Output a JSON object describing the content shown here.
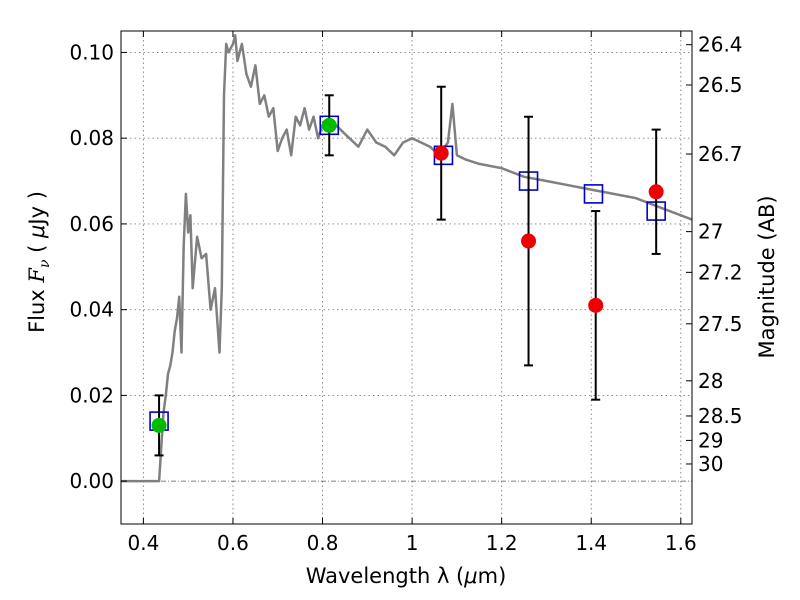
{
  "chart_data": {
    "type": "scatter",
    "xlabel": {
      "prefix": "Wavelength  λ (",
      "mu": "μ",
      "suffix": "m)"
    },
    "ylabel": {
      "prefix": "Flux  ",
      "F": "F",
      "nu": "ν",
      "open": " ( ",
      "mu": "μ",
      "suffix": "Jy )"
    },
    "y2label": "Magnitude (AB)",
    "xlim": [
      0.35,
      1.625
    ],
    "ylim": [
      -0.01,
      0.105
    ],
    "grid": true,
    "xticks": [
      {
        "value": 0.4,
        "label": "0.4"
      },
      {
        "value": 0.6,
        "label": "0.6"
      },
      {
        "value": 0.8,
        "label": "0.8"
      },
      {
        "value": 1.0,
        "label": "1"
      },
      {
        "value": 1.2,
        "label": "1.2"
      },
      {
        "value": 1.4,
        "label": "1.4"
      },
      {
        "value": 1.6,
        "label": "1.6"
      }
    ],
    "yticks": [
      {
        "value": 0.0,
        "label": "0.00"
      },
      {
        "value": 0.02,
        "label": "0.02"
      },
      {
        "value": 0.04,
        "label": "0.04"
      },
      {
        "value": 0.06,
        "label": "0.06"
      },
      {
        "value": 0.08,
        "label": "0.08"
      },
      {
        "value": 0.1,
        "label": "0.10"
      }
    ],
    "mag_ticks": [
      {
        "value": 0.1018,
        "label": "26.4"
      },
      {
        "value": 0.0924,
        "label": "26.5"
      },
      {
        "value": 0.0763,
        "label": "26.7"
      },
      {
        "value": 0.0582,
        "label": "27"
      },
      {
        "value": 0.0487,
        "label": "27.2"
      },
      {
        "value": 0.0367,
        "label": "27.5"
      },
      {
        "value": 0.0234,
        "label": "28"
      },
      {
        "value": 0.0152,
        "label": "28.5"
      },
      {
        "value": 0.0095,
        "label": "29"
      },
      {
        "value": 0.004,
        "label": "30"
      }
    ],
    "series": [
      {
        "kind": "model_spectrum",
        "color": "#808080",
        "x": [
          0.35,
          0.42,
          0.435,
          0.44,
          0.445,
          0.45,
          0.455,
          0.46,
          0.465,
          0.47,
          0.475,
          0.48,
          0.485,
          0.49,
          0.495,
          0.5,
          0.505,
          0.51,
          0.52,
          0.53,
          0.54,
          0.55,
          0.56,
          0.57,
          0.575,
          0.58,
          0.585,
          0.59,
          0.6,
          0.605,
          0.61,
          0.62,
          0.63,
          0.64,
          0.65,
          0.66,
          0.67,
          0.68,
          0.69,
          0.7,
          0.71,
          0.72,
          0.73,
          0.74,
          0.75,
          0.76,
          0.77,
          0.78,
          0.79,
          0.8,
          0.82,
          0.84,
          0.86,
          0.88,
          0.9,
          0.92,
          0.94,
          0.96,
          0.98,
          1.0,
          1.02,
          1.04,
          1.06,
          1.08,
          1.09,
          1.1,
          1.12,
          1.15,
          1.2,
          1.25,
          1.3,
          1.35,
          1.4,
          1.45,
          1.5,
          1.55,
          1.6,
          1.625
        ],
        "y": [
          0.0,
          0.0,
          0.0,
          0.008,
          0.016,
          0.02,
          0.025,
          0.027,
          0.03,
          0.035,
          0.038,
          0.043,
          0.03,
          0.055,
          0.067,
          0.058,
          0.062,
          0.045,
          0.057,
          0.052,
          0.053,
          0.04,
          0.045,
          0.03,
          0.045,
          0.09,
          0.102,
          0.1,
          0.102,
          0.104,
          0.098,
          0.102,
          0.095,
          0.092,
          0.097,
          0.088,
          0.09,
          0.085,
          0.087,
          0.077,
          0.08,
          0.082,
          0.076,
          0.085,
          0.083,
          0.087,
          0.082,
          0.085,
          0.08,
          0.083,
          0.084,
          0.082,
          0.08,
          0.078,
          0.082,
          0.079,
          0.078,
          0.076,
          0.079,
          0.08,
          0.079,
          0.078,
          0.076,
          0.079,
          0.088,
          0.076,
          0.075,
          0.074,
          0.073,
          0.071,
          0.07,
          0.069,
          0.068,
          0.067,
          0.066,
          0.064,
          0.062,
          0.061
        ]
      },
      {
        "kind": "model_points",
        "marker": "open-square",
        "color": "#0000cc",
        "x": [
          0.435,
          0.815,
          1.07,
          1.26,
          1.405,
          1.545
        ],
        "y": [
          0.014,
          0.083,
          0.076,
          0.07,
          0.067,
          0.063
        ]
      },
      {
        "kind": "observed",
        "marker": "circle",
        "color": "#00bb00",
        "x": [
          0.435,
          0.815
        ],
        "y": [
          0.013,
          0.083
        ],
        "yerr_low": [
          0.006,
          0.076
        ],
        "yerr_high": [
          0.02,
          0.09
        ]
      },
      {
        "kind": "observed",
        "marker": "circle",
        "color": "#ee0000",
        "x": [
          1.065,
          1.26,
          1.41,
          1.545
        ],
        "y": [
          0.0765,
          0.056,
          0.041,
          0.0675
        ],
        "yerr_low": [
          0.061,
          0.027,
          0.019,
          0.053
        ],
        "yerr_high": [
          0.092,
          0.085,
          0.063,
          0.082
        ]
      }
    ]
  }
}
